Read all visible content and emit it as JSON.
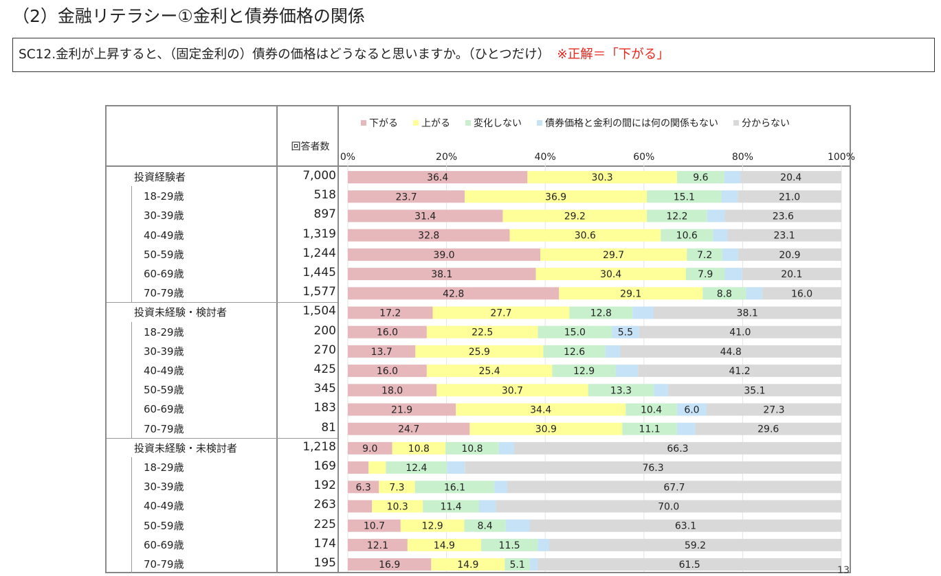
{
  "title": "（2）金融リテラシー①金利と債券価格の関係",
  "question": {
    "text": "SC12.金利が上昇すると、（固定金利の）債券の価格はどうなると思いますか。（ひとつだけ）",
    "answer_note": "※正解＝「下がる」"
  },
  "table": {
    "respondents_header": "回答者数"
  },
  "legend": [
    {
      "label": "下がる",
      "color": "#e6b8bc"
    },
    {
      "label": "上がる",
      "color": "#ffff99"
    },
    {
      "label": "変化しない",
      "color": "#c8f0cc"
    },
    {
      "label": "債券価格と金利の間には何の関係もない",
      "color": "#c5e2f7"
    },
    {
      "label": "分からない",
      "color": "#d9d9d9"
    }
  ],
  "page_number": "13",
  "chart_data": {
    "type": "bar",
    "stacked": true,
    "orientation": "horizontal",
    "xlim": [
      0,
      100
    ],
    "x_ticks": [
      "0%",
      "20%",
      "40%",
      "60%",
      "80%",
      "100%"
    ],
    "series": [
      {
        "name": "下がる",
        "color": "#e6b8bc"
      },
      {
        "name": "上がる",
        "color": "#ffff99"
      },
      {
        "name": "変化しない",
        "color": "#c8f0cc"
      },
      {
        "name": "債券価格と金利の間には何の関係もない",
        "color": "#c5e2f7"
      },
      {
        "name": "分からない",
        "color": "#d9d9d9"
      }
    ],
    "rows": [
      {
        "label": "投資経験者",
        "group": true,
        "n": "7,000",
        "values": [
          36.4,
          30.3,
          9.6,
          3.3,
          20.4
        ],
        "labels": [
          "36.4",
          "30.3",
          "9.6",
          "",
          "20.4"
        ]
      },
      {
        "label": "18-29歳",
        "group": false,
        "n": "518",
        "values": [
          23.7,
          36.9,
          15.1,
          3.3,
          21.0
        ],
        "labels": [
          "23.7",
          "36.9",
          "15.1",
          "",
          "21.0"
        ]
      },
      {
        "label": "30-39歳",
        "group": false,
        "n": "897",
        "values": [
          31.4,
          29.2,
          12.2,
          3.6,
          23.6
        ],
        "labels": [
          "31.4",
          "29.2",
          "12.2",
          "",
          "23.6"
        ]
      },
      {
        "label": "40-49歳",
        "group": false,
        "n": "1,319",
        "values": [
          32.8,
          30.6,
          10.6,
          2.9,
          23.1
        ],
        "labels": [
          "32.8",
          "30.6",
          "10.6",
          "",
          "23.1"
        ]
      },
      {
        "label": "50-59歳",
        "group": false,
        "n": "1,244",
        "values": [
          39.0,
          29.7,
          7.2,
          3.2,
          20.9
        ],
        "labels": [
          "39.0",
          "29.7",
          "7.2",
          "",
          "20.9"
        ]
      },
      {
        "label": "60-69歳",
        "group": false,
        "n": "1,445",
        "values": [
          38.1,
          30.4,
          7.9,
          3.5,
          20.1
        ],
        "labels": [
          "38.1",
          "30.4",
          "7.9",
          "",
          "20.1"
        ]
      },
      {
        "label": "70-79歳",
        "group": false,
        "n": "1,577",
        "values": [
          42.8,
          29.1,
          8.8,
          3.3,
          16.0
        ],
        "labels": [
          "42.8",
          "29.1",
          "8.8",
          "",
          "16.0"
        ]
      },
      {
        "label": "投資未経験・検討者",
        "group": true,
        "n": "1,504",
        "values": [
          17.2,
          27.7,
          12.8,
          4.2,
          38.1
        ],
        "labels": [
          "17.2",
          "27.7",
          "12.8",
          "",
          "38.1"
        ]
      },
      {
        "label": "18-29歳",
        "group": false,
        "n": "200",
        "values": [
          16.0,
          22.5,
          15.0,
          5.5,
          41.0
        ],
        "labels": [
          "16.0",
          "22.5",
          "15.0",
          "5.5",
          "41.0"
        ]
      },
      {
        "label": "30-39歳",
        "group": false,
        "n": "270",
        "values": [
          13.7,
          25.9,
          12.6,
          3.0,
          44.8
        ],
        "labels": [
          "13.7",
          "25.9",
          "12.6",
          "",
          "44.8"
        ]
      },
      {
        "label": "40-49歳",
        "group": false,
        "n": "425",
        "values": [
          16.0,
          25.4,
          12.9,
          4.5,
          41.2
        ],
        "labels": [
          "16.0",
          "25.4",
          "12.9",
          "",
          "41.2"
        ]
      },
      {
        "label": "50-59歳",
        "group": false,
        "n": "345",
        "values": [
          18.0,
          30.7,
          13.3,
          2.9,
          35.1
        ],
        "labels": [
          "18.0",
          "30.7",
          "13.3",
          "",
          "35.1"
        ]
      },
      {
        "label": "60-69歳",
        "group": false,
        "n": "183",
        "values": [
          21.9,
          34.4,
          10.4,
          6.0,
          27.3
        ],
        "labels": [
          "21.9",
          "34.4",
          "10.4",
          "6.0",
          "27.3"
        ]
      },
      {
        "label": "70-79歳",
        "group": false,
        "n": "81",
        "values": [
          24.7,
          30.9,
          11.1,
          3.7,
          29.6
        ],
        "labels": [
          "24.7",
          "30.9",
          "11.1",
          "",
          "29.6"
        ]
      },
      {
        "label": "投資未経験・未検討者",
        "group": true,
        "n": "1,218",
        "values": [
          9.0,
          10.8,
          10.8,
          3.1,
          66.3
        ],
        "labels": [
          "9.0",
          "10.8",
          "10.8",
          "",
          "66.3"
        ]
      },
      {
        "label": "18-29歳",
        "group": false,
        "n": "169",
        "values": [
          4.2,
          3.5,
          12.4,
          3.6,
          76.3
        ],
        "labels": [
          "",
          "",
          "12.4",
          "",
          "76.3"
        ]
      },
      {
        "label": "30-39歳",
        "group": false,
        "n": "192",
        "values": [
          6.3,
          7.3,
          16.1,
          2.6,
          67.7
        ],
        "labels": [
          "6.3",
          "7.3",
          "16.1",
          "",
          "67.7"
        ]
      },
      {
        "label": "40-49歳",
        "group": false,
        "n": "263",
        "values": [
          4.9,
          10.3,
          11.4,
          3.4,
          70.0
        ],
        "labels": [
          "",
          "10.3",
          "11.4",
          "",
          "70.0"
        ]
      },
      {
        "label": "50-59歳",
        "group": false,
        "n": "225",
        "values": [
          10.7,
          12.9,
          8.4,
          4.9,
          63.1
        ],
        "labels": [
          "10.7",
          "12.9",
          "8.4",
          "",
          "63.1"
        ]
      },
      {
        "label": "60-69歳",
        "group": false,
        "n": "174",
        "values": [
          12.1,
          14.9,
          11.5,
          2.3,
          59.2
        ],
        "labels": [
          "12.1",
          "14.9",
          "11.5",
          "",
          "59.2"
        ]
      },
      {
        "label": "70-79歳",
        "group": false,
        "n": "195",
        "values": [
          16.9,
          14.9,
          5.1,
          1.6,
          61.5
        ],
        "labels": [
          "16.9",
          "14.9",
          "5.1",
          "",
          "61.5"
        ]
      }
    ]
  }
}
